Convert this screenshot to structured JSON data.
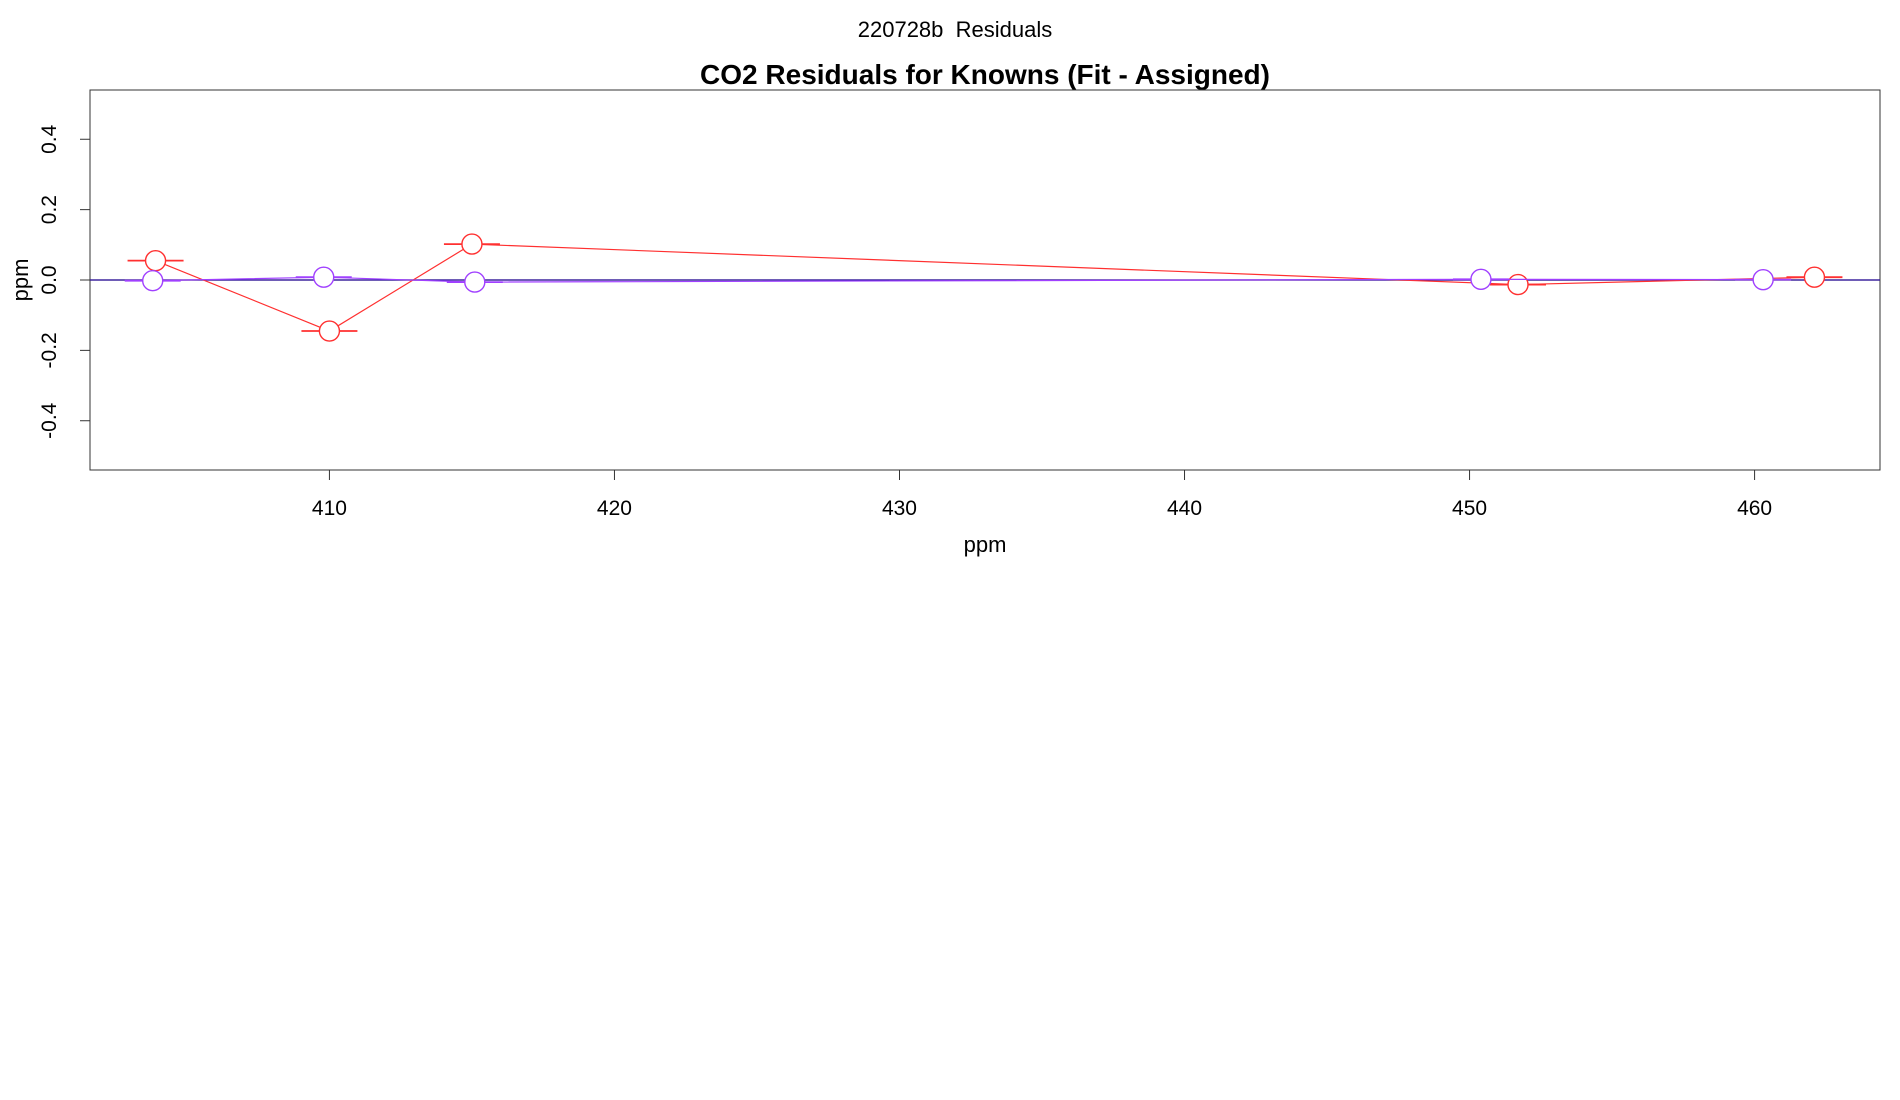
{
  "page_header": "220728b  Residuals",
  "chart_data": {
    "type": "scatter",
    "title": "CO2 Residuals for Knowns (Fit - Assigned)",
    "xlabel": "ppm",
    "ylabel": "ppm",
    "xlim": [
      401.6,
      464.4
    ],
    "ylim": [
      -0.54,
      0.54
    ],
    "x_ticks": [
      410,
      420,
      430,
      440,
      450,
      460
    ],
    "y_ticks": [
      -0.4,
      -0.2,
      0.0,
      0.2,
      0.4
    ],
    "x_tick_labels": [
      "410",
      "420",
      "430",
      "440",
      "450",
      "460"
    ],
    "y_tick_labels": [
      "-0.4",
      "-0.2",
      "0.0",
      "0.2",
      "0.4"
    ],
    "reference_line_y": 0,
    "legend": "none",
    "grid": false,
    "series": [
      {
        "color": "#ff3030",
        "x": [
          403.9,
          410.0,
          415.0,
          451.7,
          462.1
        ],
        "y": [
          0.055,
          -0.145,
          0.102,
          -0.013,
          0.008
        ]
      },
      {
        "color": "#a040ff",
        "x": [
          403.8,
          409.8,
          415.1,
          450.4,
          460.3
        ],
        "y": [
          -0.002,
          0.008,
          -0.006,
          0.002,
          0.001
        ]
      }
    ],
    "fit_line_color": "#4020c0"
  }
}
